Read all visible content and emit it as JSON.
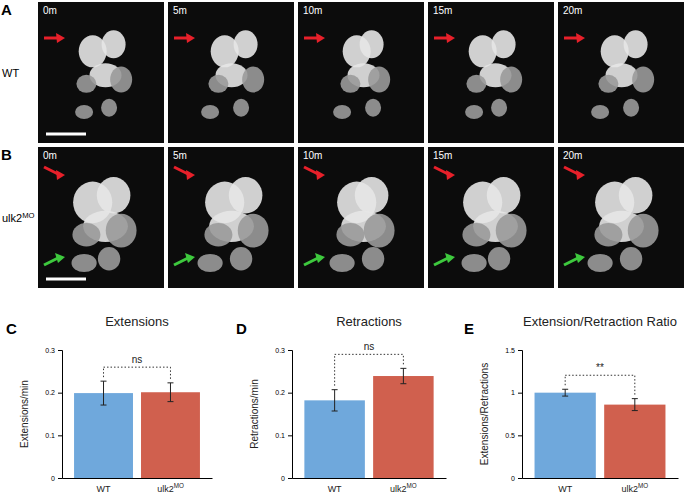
{
  "panels": [
    {
      "letter": "A",
      "label": "WT",
      "times": [
        "0m",
        "5m",
        "10m",
        "15m",
        "20m"
      ]
    },
    {
      "letter": "B",
      "label": "ulk2MO",
      "times": [
        "0m",
        "5m",
        "10m",
        "15m",
        "20m"
      ]
    }
  ],
  "chart_data": [
    {
      "type": "bar",
      "panel": "C",
      "title": "Extensions",
      "y_label": "Extensions/min",
      "categories": [
        "WT",
        "ulk2MO"
      ],
      "values": [
        0.199,
        0.201
      ],
      "errors": [
        0.028,
        0.022
      ],
      "colors": [
        "#6fa8dc",
        "#d0604e"
      ],
      "ylim": [
        0,
        0.3
      ],
      "yticks": [
        0,
        0.1,
        0.2,
        0.3
      ],
      "grid": false,
      "annotation": "ns"
    },
    {
      "type": "bar",
      "panel": "D",
      "title": "Retractions",
      "y_label": "Retractions/min",
      "categories": [
        "WT",
        "ulk2MO"
      ],
      "values": [
        0.182,
        0.239
      ],
      "errors": [
        0.025,
        0.018
      ],
      "colors": [
        "#6fa8dc",
        "#d0604e"
      ],
      "ylim": [
        0,
        0.3
      ],
      "yticks": [
        0,
        0.1,
        0.2,
        0.3
      ],
      "grid": false,
      "annotation": "ns"
    },
    {
      "type": "bar",
      "panel": "E",
      "title": "Extension/Retraction Ratio",
      "y_label": "Extensions/Retractions",
      "categories": [
        "WT",
        "ulk2MO"
      ],
      "values": [
        1.0,
        0.86
      ],
      "errors": [
        0.04,
        0.07
      ],
      "colors": [
        "#6fa8dc",
        "#d0604e"
      ],
      "ylim": [
        0,
        1.5
      ],
      "yticks": [
        0,
        0.5,
        1,
        1.5
      ],
      "grid": false,
      "annotation": "**"
    }
  ]
}
